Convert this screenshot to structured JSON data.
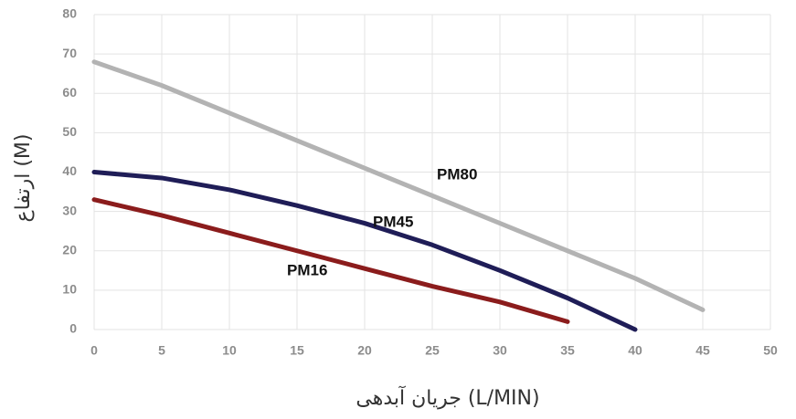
{
  "chart_data": {
    "type": "line",
    "xlabel": "جریان آبدهی (L/MIN)",
    "ylabel": "ارتفاع (M)",
    "x": [
      0,
      5,
      10,
      15,
      20,
      25,
      30,
      35,
      40,
      45
    ],
    "series": [
      {
        "name": "PM80",
        "color": "#b3b3b3",
        "values": [
          68,
          62,
          55,
          48,
          41,
          34,
          27,
          20,
          13,
          5
        ]
      },
      {
        "name": "PM45",
        "color": "#1f1d57",
        "values": [
          40,
          38.5,
          35.5,
          31.5,
          27,
          21.5,
          15,
          8,
          0,
          null
        ]
      },
      {
        "name": "PM16",
        "color": "#8b1c1c",
        "values": [
          33,
          29,
          24.5,
          20,
          15.5,
          11,
          7,
          2,
          null,
          null
        ]
      }
    ],
    "xlim": [
      0,
      50
    ],
    "xticks": [
      0,
      5,
      10,
      15,
      20,
      25,
      30,
      35,
      40,
      45,
      50
    ],
    "ylim": [
      0,
      80
    ],
    "yticks": [
      0,
      10,
      20,
      30,
      40,
      50,
      60,
      70,
      80
    ],
    "grid": true
  }
}
